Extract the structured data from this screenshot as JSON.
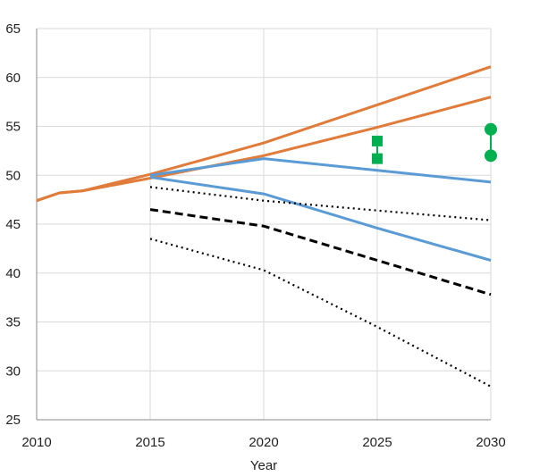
{
  "chart_data": {
    "type": "line",
    "xlabel": "Year",
    "ylabel": "",
    "xlim": [
      2010,
      2030
    ],
    "ylim": [
      25,
      65
    ],
    "xticks": [
      2010,
      2015,
      2020,
      2025,
      2030
    ],
    "yticks": [
      25,
      30,
      35,
      40,
      45,
      50,
      55,
      60,
      65
    ],
    "grid": true,
    "legend": "none",
    "colors": {
      "orange": "#E07B39",
      "blue": "#5B9BD5",
      "black": "#000000",
      "green": "#00B050",
      "grid": "#D9D9D9"
    },
    "series": [
      {
        "color": "orange",
        "style": "solid",
        "points": [
          [
            2010,
            47.4
          ],
          [
            2011,
            48.2
          ],
          [
            2012,
            48.4
          ],
          [
            2015,
            50.1
          ],
          [
            2020,
            53.3
          ],
          [
            2025,
            57.2
          ],
          [
            2030,
            61.1
          ]
        ]
      },
      {
        "color": "orange",
        "style": "solid",
        "points": [
          [
            2010,
            47.4
          ],
          [
            2011,
            48.2
          ],
          [
            2012,
            48.4
          ],
          [
            2015,
            49.7
          ],
          [
            2020,
            52.0
          ],
          [
            2025,
            54.9
          ],
          [
            2030,
            58.0
          ]
        ]
      },
      {
        "color": "blue",
        "style": "solid",
        "points": [
          [
            2015,
            50.0
          ],
          [
            2020,
            51.7
          ],
          [
            2025,
            50.5
          ],
          [
            2030,
            49.3
          ]
        ]
      },
      {
        "color": "blue",
        "style": "solid",
        "points": [
          [
            2015,
            49.8
          ],
          [
            2020,
            48.1
          ],
          [
            2025,
            44.6
          ],
          [
            2030,
            41.3
          ]
        ]
      },
      {
        "color": "black",
        "style": "dotted",
        "points": [
          [
            2015,
            48.8
          ],
          [
            2020,
            47.4
          ],
          [
            2025,
            46.4
          ],
          [
            2030,
            45.4
          ]
        ]
      },
      {
        "color": "black",
        "style": "dashed",
        "points": [
          [
            2015,
            46.5
          ],
          [
            2020,
            44.8
          ],
          [
            2025,
            41.3
          ],
          [
            2030,
            37.8
          ]
        ]
      },
      {
        "color": "black",
        "style": "dotted",
        "points": [
          [
            2015,
            43.5
          ],
          [
            2020,
            40.3
          ],
          [
            2025,
            34.5
          ],
          [
            2030,
            28.4
          ]
        ]
      }
    ],
    "markers": [
      {
        "shape": "square",
        "color": "green",
        "x": 2025,
        "values": [
          53.5,
          51.7
        ]
      },
      {
        "shape": "circle",
        "color": "green",
        "x": 2030,
        "values": [
          54.7,
          52.0
        ]
      }
    ]
  }
}
